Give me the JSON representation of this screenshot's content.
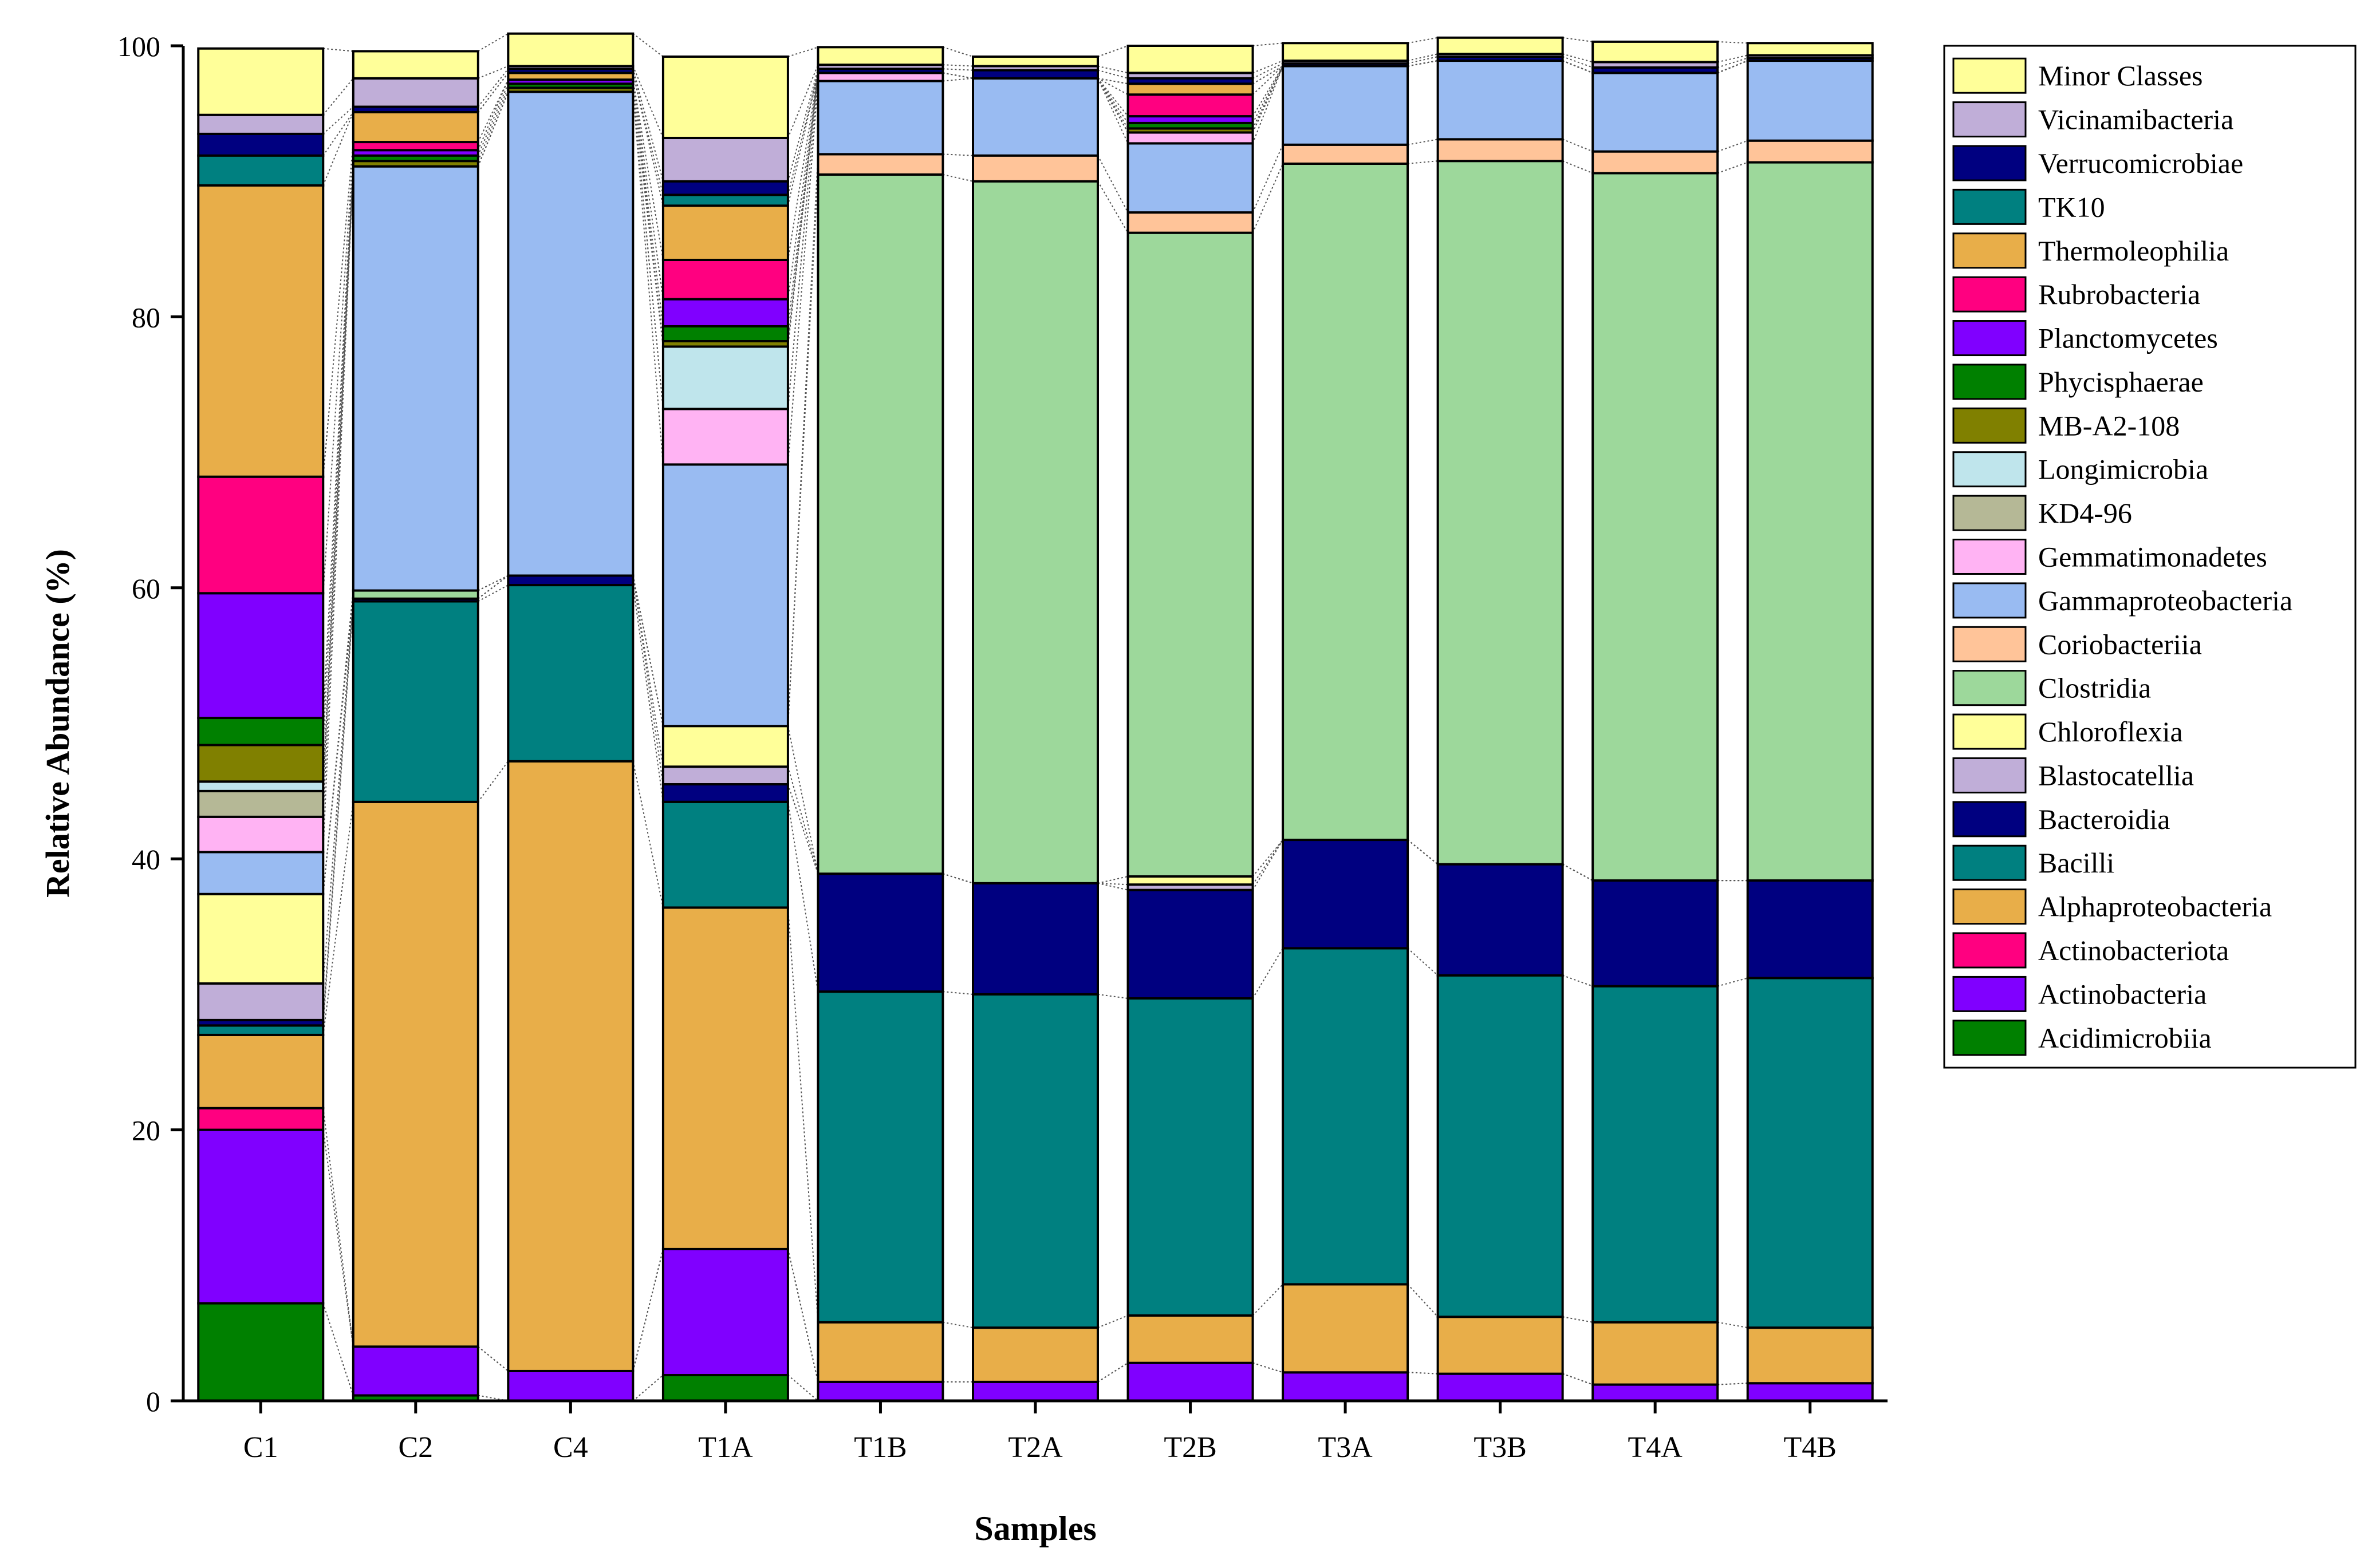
{
  "chart_data": {
    "type": "bar",
    "stacked": true,
    "xlabel": "Samples",
    "ylabel": "Relative Abundance (%)",
    "ylim": [
      0,
      100
    ],
    "yticks": [
      0,
      20,
      40,
      60,
      80,
      100
    ],
    "grid": false,
    "legend_position": "right",
    "categories": [
      "C1",
      "C2",
      "C4",
      "T1A",
      "T1B",
      "T2A",
      "T2B",
      "T3A",
      "T3B",
      "T4A",
      "T4B"
    ],
    "series": [
      {
        "name": "Acidimicrobiia",
        "color": "#008000",
        "values": [
          7.2,
          0.4,
          0.0,
          1.9,
          0.0,
          0.0,
          0.0,
          0.0,
          0.0,
          0.0,
          0.0
        ]
      },
      {
        "name": "Actinobacteria",
        "color": "#8000FF",
        "values": [
          12.8,
          3.6,
          2.2,
          9.3,
          1.4,
          1.4,
          2.8,
          2.1,
          2.0,
          1.2,
          1.3
        ]
      },
      {
        "name": "Actinobacteriota",
        "color": "#FF0080",
        "values": [
          1.6,
          0.0,
          0.0,
          0.0,
          0.0,
          0.0,
          0.0,
          0.0,
          0.0,
          0.0,
          0.0
        ]
      },
      {
        "name": "Alphaproteobacteria",
        "color": "#E8AE49",
        "values": [
          5.4,
          40.2,
          45.0,
          25.2,
          4.4,
          4.0,
          3.5,
          6.5,
          4.2,
          4.6,
          4.1
        ]
      },
      {
        "name": "Bacilli",
        "color": "#008080",
        "values": [
          0.7,
          14.8,
          13.0,
          7.8,
          24.4,
          24.6,
          23.4,
          24.8,
          25.2,
          24.8,
          25.8
        ]
      },
      {
        "name": "Bacteroidia",
        "color": "#000080",
        "values": [
          0.4,
          0.2,
          0.7,
          1.3,
          8.7,
          8.2,
          8.0,
          8.0,
          8.2,
          7.8,
          7.2
        ]
      },
      {
        "name": "Blastocatellia",
        "color": "#C0AED8",
        "values": [
          2.7,
          0.0,
          0.0,
          1.3,
          0.0,
          0.0,
          0.4,
          0.0,
          0.0,
          0.0,
          0.0
        ]
      },
      {
        "name": "Chloroflexia",
        "color": "#FFFF99",
        "values": [
          6.6,
          0.0,
          0.0,
          3.0,
          0.0,
          0.0,
          0.6,
          0.0,
          0.0,
          0.0,
          0.0
        ]
      },
      {
        "name": "Clostridia",
        "color": "#9DD89B",
        "values": [
          0.0,
          0.6,
          0.0,
          0.0,
          51.6,
          51.8,
          47.5,
          49.9,
          51.9,
          52.2,
          53.0
        ]
      },
      {
        "name": "Coriobacteriia",
        "color": "#FFC499",
        "values": [
          0.0,
          0.0,
          0.0,
          0.0,
          1.5,
          1.9,
          1.5,
          1.4,
          1.6,
          1.6,
          1.6
        ]
      },
      {
        "name": "Gammaproteobacteria",
        "color": "#99BBF2",
        "values": [
          3.1,
          31.3,
          35.7,
          19.3,
          5.4,
          5.7,
          5.1,
          5.8,
          5.8,
          5.8,
          5.9
        ]
      },
      {
        "name": "Gemmatimonadetes",
        "color": "#FFB3F3",
        "values": [
          2.6,
          0.0,
          0.0,
          4.1,
          0.6,
          0.0,
          0.8,
          0.0,
          0.0,
          0.0,
          0.0
        ]
      },
      {
        "name": "KD4-96",
        "color": "#B5B896",
        "values": [
          1.9,
          0.0,
          0.0,
          0.0,
          0.0,
          0.0,
          0.0,
          0.0,
          0.0,
          0.0,
          0.0
        ]
      },
      {
        "name": "Longimicrobia",
        "color": "#BFE5EC",
        "values": [
          0.7,
          0.0,
          0.0,
          4.6,
          0.0,
          0.0,
          0.0,
          0.0,
          0.0,
          0.0,
          0.0
        ]
      },
      {
        "name": "MB-A2-108",
        "color": "#808000",
        "values": [
          2.7,
          0.4,
          0.3,
          0.4,
          0.0,
          0.0,
          0.3,
          0.0,
          0.0,
          0.0,
          0.0
        ]
      },
      {
        "name": "Phycisphaerae",
        "color": "#008000",
        "values": [
          2.0,
          0.4,
          0.3,
          1.1,
          0.0,
          0.0,
          0.4,
          0.0,
          0.0,
          0.0,
          0.0
        ]
      },
      {
        "name": "Planctomycetes",
        "color": "#8000FF",
        "values": [
          9.2,
          0.4,
          0.3,
          2.0,
          0.0,
          0.0,
          0.5,
          0.0,
          0.0,
          0.0,
          0.0
        ]
      },
      {
        "name": "Rubrobacteria",
        "color": "#FF0080",
        "values": [
          8.6,
          0.6,
          0.0,
          2.9,
          0.0,
          0.0,
          1.6,
          0.0,
          0.0,
          0.0,
          0.0
        ]
      },
      {
        "name": "Thermoleophilia",
        "color": "#E8AE49",
        "values": [
          21.5,
          2.2,
          0.5,
          4.0,
          0.0,
          0.0,
          0.8,
          0.0,
          0.0,
          0.0,
          0.0
        ]
      },
      {
        "name": "TK10",
        "color": "#008080",
        "values": [
          2.2,
          0.0,
          0.0,
          0.8,
          0.0,
          0.0,
          0.0,
          0.0,
          0.0,
          0.0,
          0.0
        ]
      },
      {
        "name": "Verrucomicrobiae",
        "color": "#000080",
        "values": [
          1.6,
          0.4,
          0.3,
          1.0,
          0.3,
          0.6,
          0.4,
          0.2,
          0.3,
          0.4,
          0.2
        ]
      },
      {
        "name": "Vicinamibacteria",
        "color": "#C0AED8",
        "values": [
          1.4,
          2.1,
          0.2,
          3.2,
          0.3,
          0.3,
          0.4,
          0.2,
          0.2,
          0.4,
          0.2
        ]
      },
      {
        "name": "Minor Classes",
        "color": "#FFFF99",
        "values": [
          4.9,
          2.0,
          2.4,
          6.0,
          1.3,
          0.7,
          2.0,
          1.3,
          1.2,
          1.5,
          0.9
        ]
      }
    ]
  }
}
